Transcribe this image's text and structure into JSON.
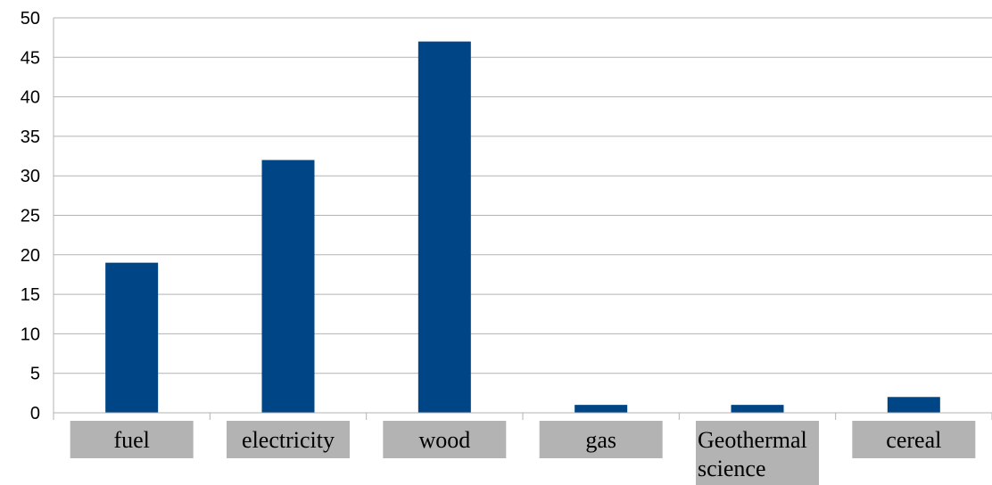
{
  "chart_data": {
    "type": "bar",
    "categories": [
      "fuel",
      "electricity",
      "wood",
      "gas",
      "Geothermal science",
      "cereal"
    ],
    "category_lines": [
      [
        "fuel"
      ],
      [
        "electricity"
      ],
      [
        "wood"
      ],
      [
        "gas"
      ],
      [
        "Geothermal",
        "science"
      ],
      [
        "cereal"
      ]
    ],
    "values": [
      19,
      32,
      47,
      1,
      1,
      2
    ],
    "ylim": [
      0,
      50
    ],
    "yticks": [
      "0",
      "5",
      "10",
      "15",
      "20",
      "25",
      "30",
      "35",
      "40",
      "45",
      "50"
    ],
    "title": "",
    "xlabel": "",
    "ylabel": "",
    "grid": true,
    "legend": "none",
    "colors": {
      "bar": "#004586",
      "grid": "#b3b3b3",
      "category_box": "#b3b3b3"
    }
  }
}
